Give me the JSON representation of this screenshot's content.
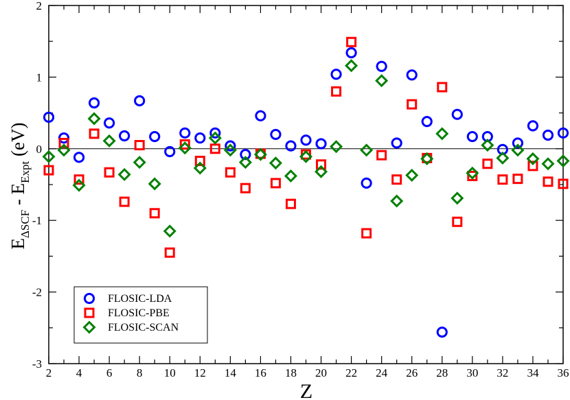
{
  "chart_data": {
    "type": "scatter",
    "title": "",
    "xlabel": "Z",
    "ylabel": {
      "main": "E",
      "sub1": "ΔSCF",
      "mid": " - E",
      "sub2": "Expt",
      "unit": " (eV)"
    },
    "xlim": [
      2,
      36
    ],
    "ylim": [
      -3,
      2
    ],
    "xticks": [
      2,
      4,
      6,
      8,
      10,
      12,
      14,
      16,
      18,
      20,
      22,
      24,
      26,
      28,
      30,
      32,
      34,
      36
    ],
    "xtick_labels": [
      "2",
      "4",
      "6",
      "8",
      "10",
      "12",
      "14",
      "16",
      "18",
      "20",
      "22",
      "24",
      "26",
      "28",
      "30",
      "32",
      "34",
      "36"
    ],
    "yticks": [
      -3,
      -2,
      -1,
      0,
      1,
      2
    ],
    "ytick_labels": [
      "-3",
      "-2",
      "-1",
      "0",
      "1",
      "2"
    ],
    "reference_line_y": 0,
    "grid": false,
    "legend_position": "bottom-left",
    "x": [
      2,
      3,
      4,
      5,
      6,
      7,
      8,
      9,
      10,
      11,
      12,
      13,
      14,
      15,
      16,
      17,
      18,
      19,
      20,
      21,
      22,
      23,
      24,
      25,
      26,
      27,
      28,
      29,
      30,
      31,
      32,
      33,
      34,
      35,
      36
    ],
    "series": [
      {
        "name": "FLOSIC-LDA",
        "marker": "circle",
        "color": "#0000ff",
        "values": [
          0.44,
          0.15,
          -0.12,
          0.64,
          0.36,
          0.18,
          0.67,
          0.17,
          -0.04,
          0.22,
          0.15,
          0.22,
          0.04,
          -0.08,
          0.46,
          0.2,
          0.04,
          0.12,
          0.07,
          1.04,
          1.34,
          -0.48,
          1.15,
          0.08,
          1.03,
          0.38,
          -2.56,
          0.48,
          0.17,
          0.17,
          -0.01,
          0.08,
          0.32,
          0.19,
          0.22
        ]
      },
      {
        "name": "FLOSIC-PBE",
        "marker": "square",
        "color": "#ff0000",
        "values": [
          -0.3,
          0.08,
          -0.43,
          0.21,
          -0.33,
          -0.74,
          0.05,
          -0.9,
          -1.45,
          0.06,
          -0.17,
          0.0,
          -0.33,
          -0.55,
          -0.07,
          -0.48,
          -0.77,
          -0.08,
          -0.22,
          0.8,
          1.49,
          -1.18,
          -0.09,
          -0.43,
          0.62,
          -0.13,
          0.86,
          -1.02,
          -0.38,
          -0.21,
          -0.43,
          -0.42,
          -0.24,
          -0.46,
          -0.49
        ]
      },
      {
        "name": "FLOSIC-SCAN",
        "marker": "diamond",
        "color": "#008000",
        "values": [
          -0.11,
          -0.02,
          -0.51,
          0.42,
          0.11,
          -0.36,
          -0.19,
          -0.49,
          -1.15,
          0.01,
          -0.27,
          0.15,
          -0.02,
          -0.19,
          -0.08,
          -0.2,
          -0.38,
          -0.11,
          -0.32,
          0.03,
          1.16,
          -0.02,
          0.95,
          -0.73,
          -0.37,
          -0.14,
          0.21,
          -0.69,
          -0.34,
          0.05,
          -0.13,
          -0.02,
          -0.14,
          -0.21,
          -0.17
        ]
      }
    ]
  }
}
